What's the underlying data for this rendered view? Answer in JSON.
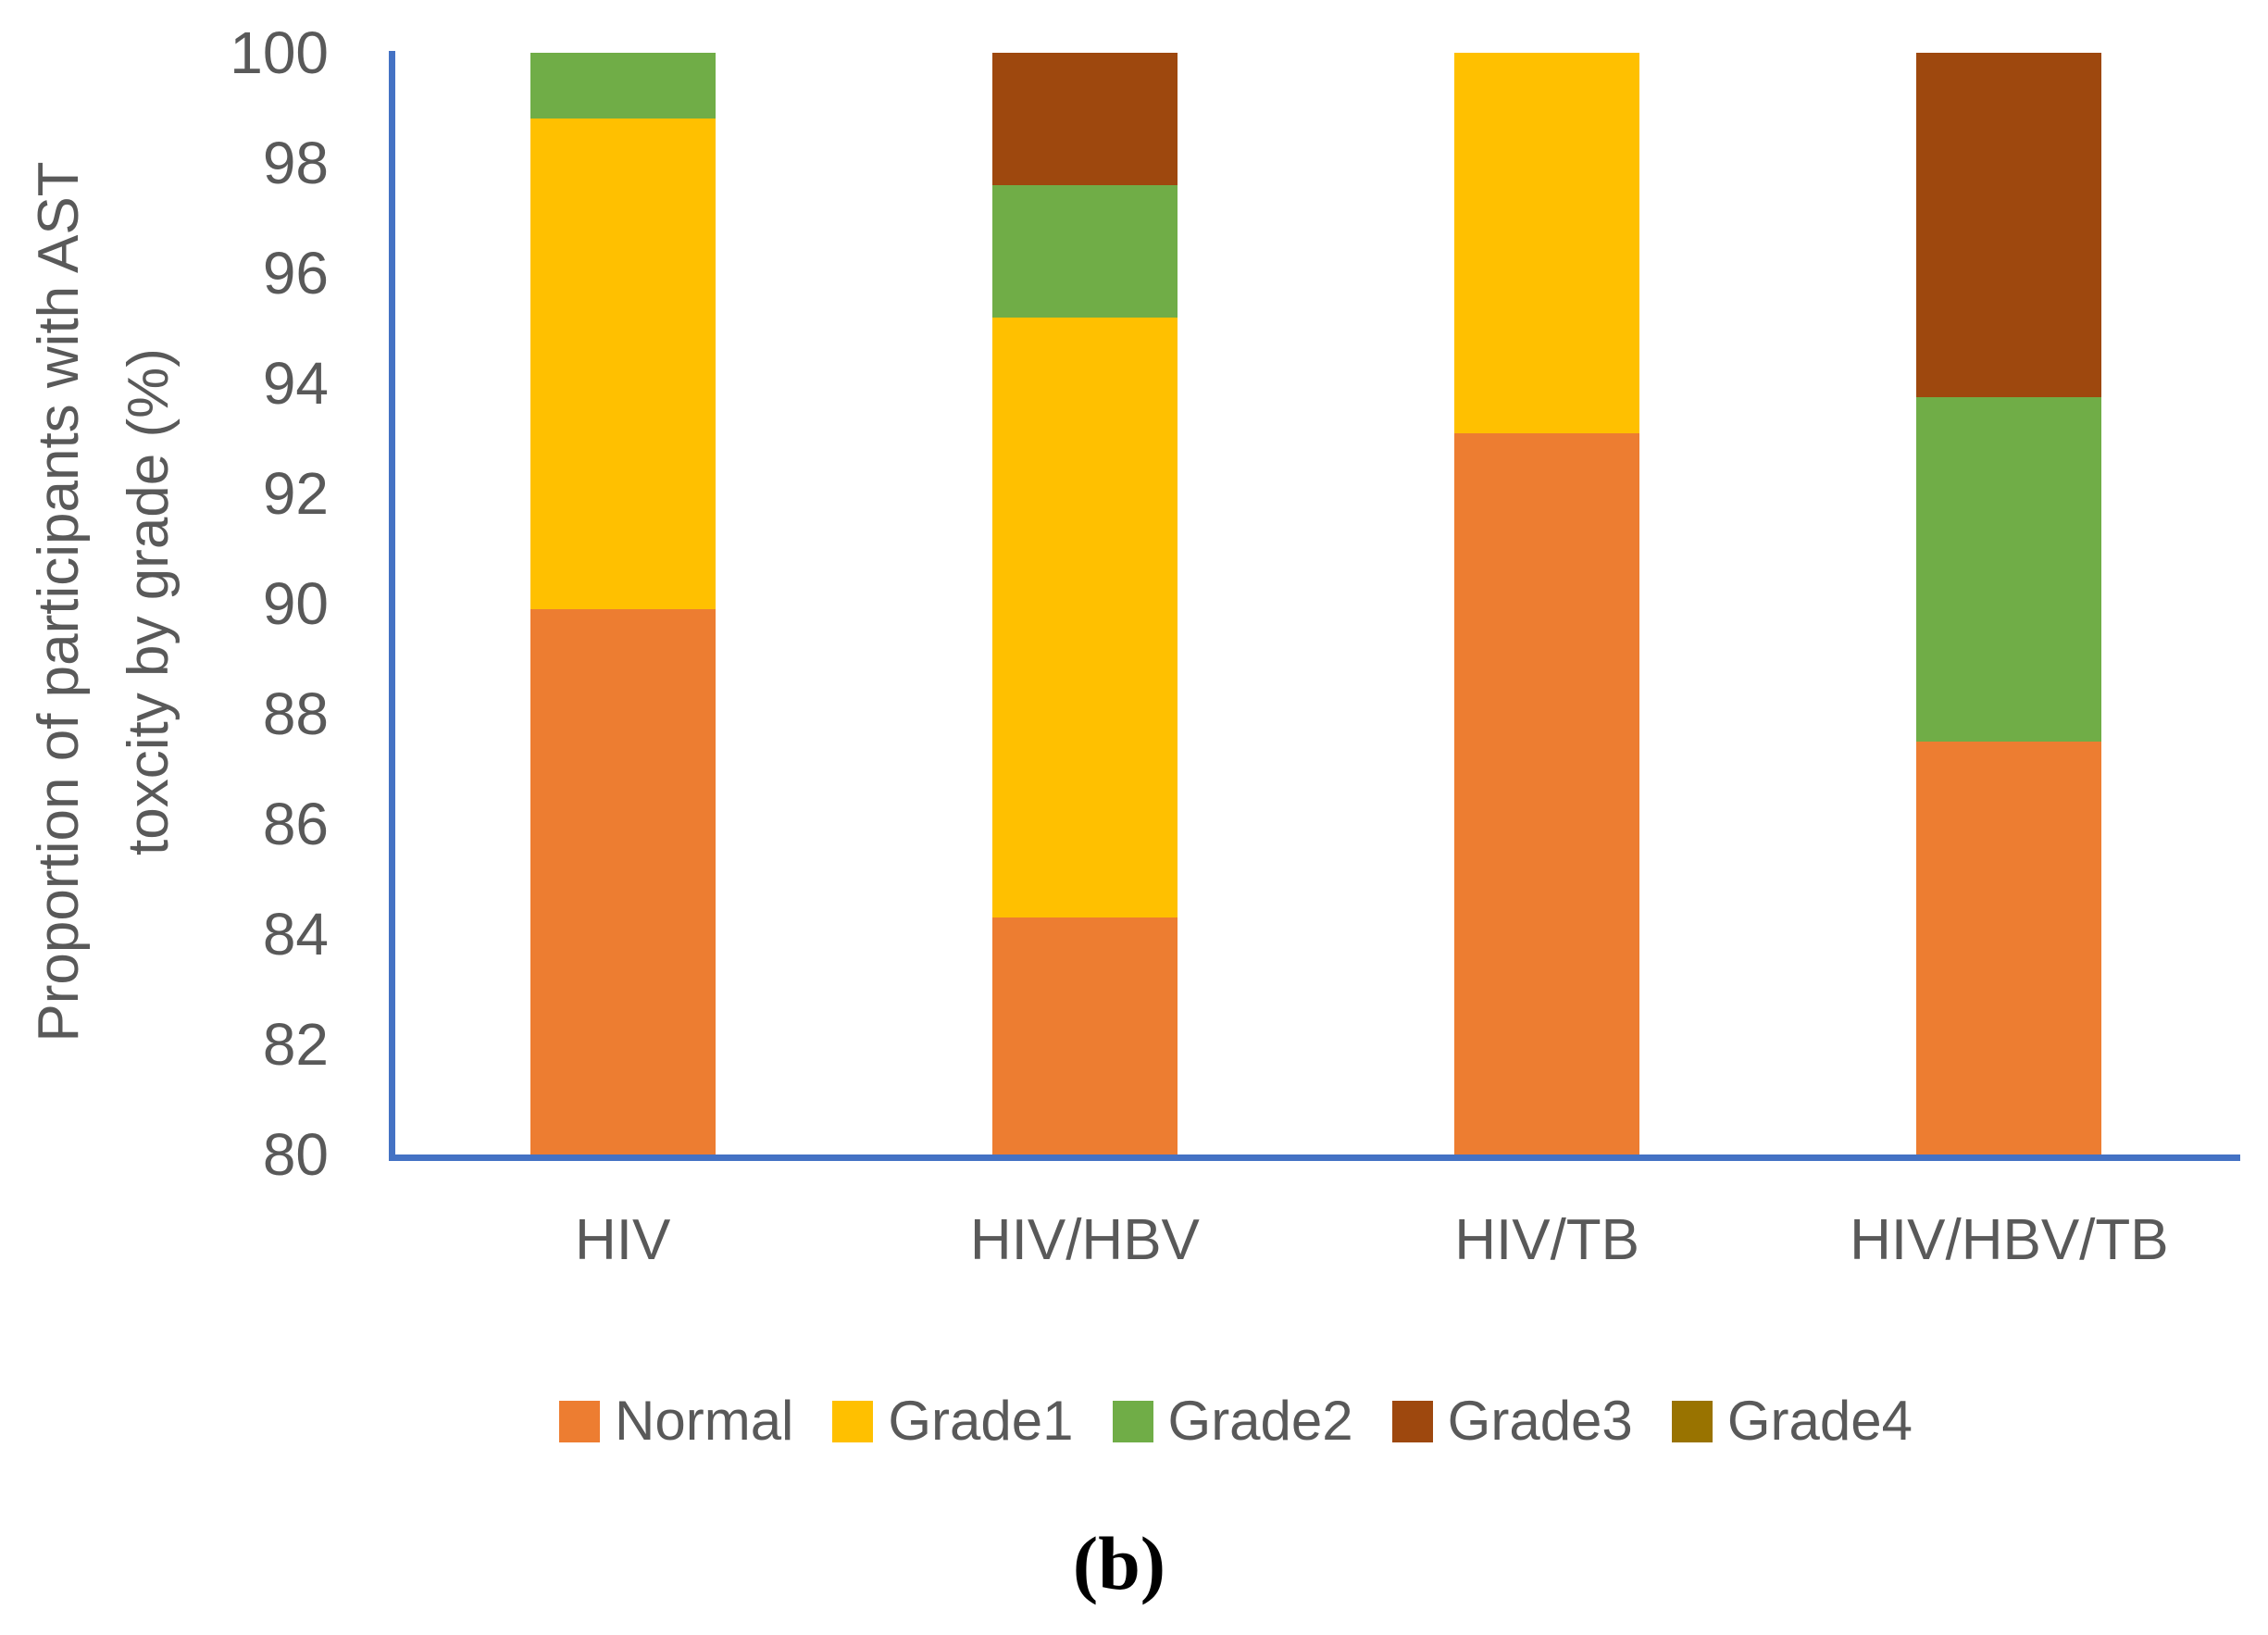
{
  "figure": {
    "caption": "(b)"
  },
  "chart_data": {
    "type": "bar",
    "stacked": true,
    "title": "",
    "xlabel": "",
    "ylabel": "Proportion of participants with AST toxcity by grade (%)",
    "ylabel_lines": [
      "Proportion of participants with AST",
      "toxcity by grade (%)"
    ],
    "categories": [
      "HIV",
      "HIV/HBV",
      "HIV/TB",
      "HIV/HBV/TB"
    ],
    "series": [
      {
        "name": "Normal",
        "color": "#ED7D31",
        "values": [
          89.9,
          84.3,
          93.1,
          87.5
        ]
      },
      {
        "name": "Grade1",
        "color": "#FFC000",
        "values": [
          8.9,
          10.9,
          6.9,
          0
        ]
      },
      {
        "name": "Grade2",
        "color": "#70AD47",
        "values": [
          1.2,
          2.4,
          0,
          6.25
        ]
      },
      {
        "name": "Grade3",
        "color": "#9E480E",
        "values": [
          0,
          2.4,
          0,
          6.25
        ]
      },
      {
        "name": "Grade4",
        "color": "#997300",
        "values": [
          0,
          0,
          0,
          0
        ]
      }
    ],
    "ylim": [
      80,
      100
    ],
    "yticks": [
      100,
      98,
      96,
      94,
      92,
      90,
      88,
      86,
      84,
      82,
      80
    ],
    "grid": false,
    "legend_position": "bottom",
    "axis_color": "#4472C4",
    "text_color": "#595959"
  }
}
